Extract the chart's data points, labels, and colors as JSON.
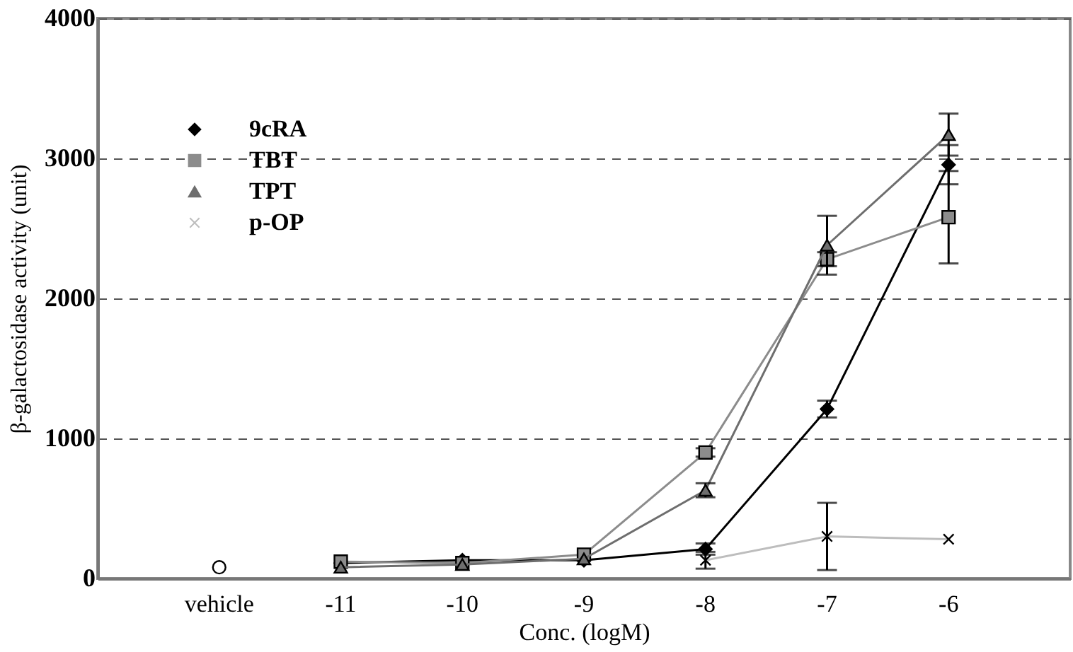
{
  "chart_data": {
    "type": "line",
    "xlabel": "Conc. (logM)",
    "ylabel": "β-galactosidase activity (unit)",
    "categories": [
      "vehicle",
      "-11",
      "-10",
      "-9",
      "-8",
      "-7",
      "-6"
    ],
    "ylim": [
      0,
      4000
    ],
    "yticks": [
      0,
      1000,
      2000,
      3000,
      4000
    ],
    "grid": "y",
    "legend": "top left",
    "series": [
      {
        "name": "9cRA",
        "color": "#000000",
        "marker": "diamond",
        "values": [
          null,
          110,
          130,
          130,
          210,
          1210,
          2955
        ],
        "errors": [
          null,
          null,
          null,
          null,
          40,
          60,
          140
        ]
      },
      {
        "name": "TBT",
        "color": "#8c8c8c",
        "marker": "square",
        "values": [
          null,
          120,
          110,
          170,
          900,
          2280,
          2580
        ],
        "errors": [
          null,
          null,
          null,
          null,
          30,
          50,
          330
        ]
      },
      {
        "name": "TPT",
        "color": "#6e6e6e",
        "marker": "triangle",
        "values": [
          null,
          80,
          100,
          140,
          630,
          2380,
          3170
        ],
        "errors": [
          null,
          null,
          null,
          null,
          50,
          210,
          150
        ]
      },
      {
        "name": "p-OP",
        "color": "#bdbdbd",
        "marker": "cross",
        "values": [
          null,
          null,
          null,
          null,
          130,
          300,
          280
        ],
        "errors": [
          null,
          null,
          null,
          null,
          60,
          240,
          null
        ]
      },
      {
        "type": "scatter",
        "color": "#000000",
        "marker": "circle",
        "values": [
          80,
          null,
          null,
          null,
          null,
          null,
          null
        ]
      }
    ]
  }
}
